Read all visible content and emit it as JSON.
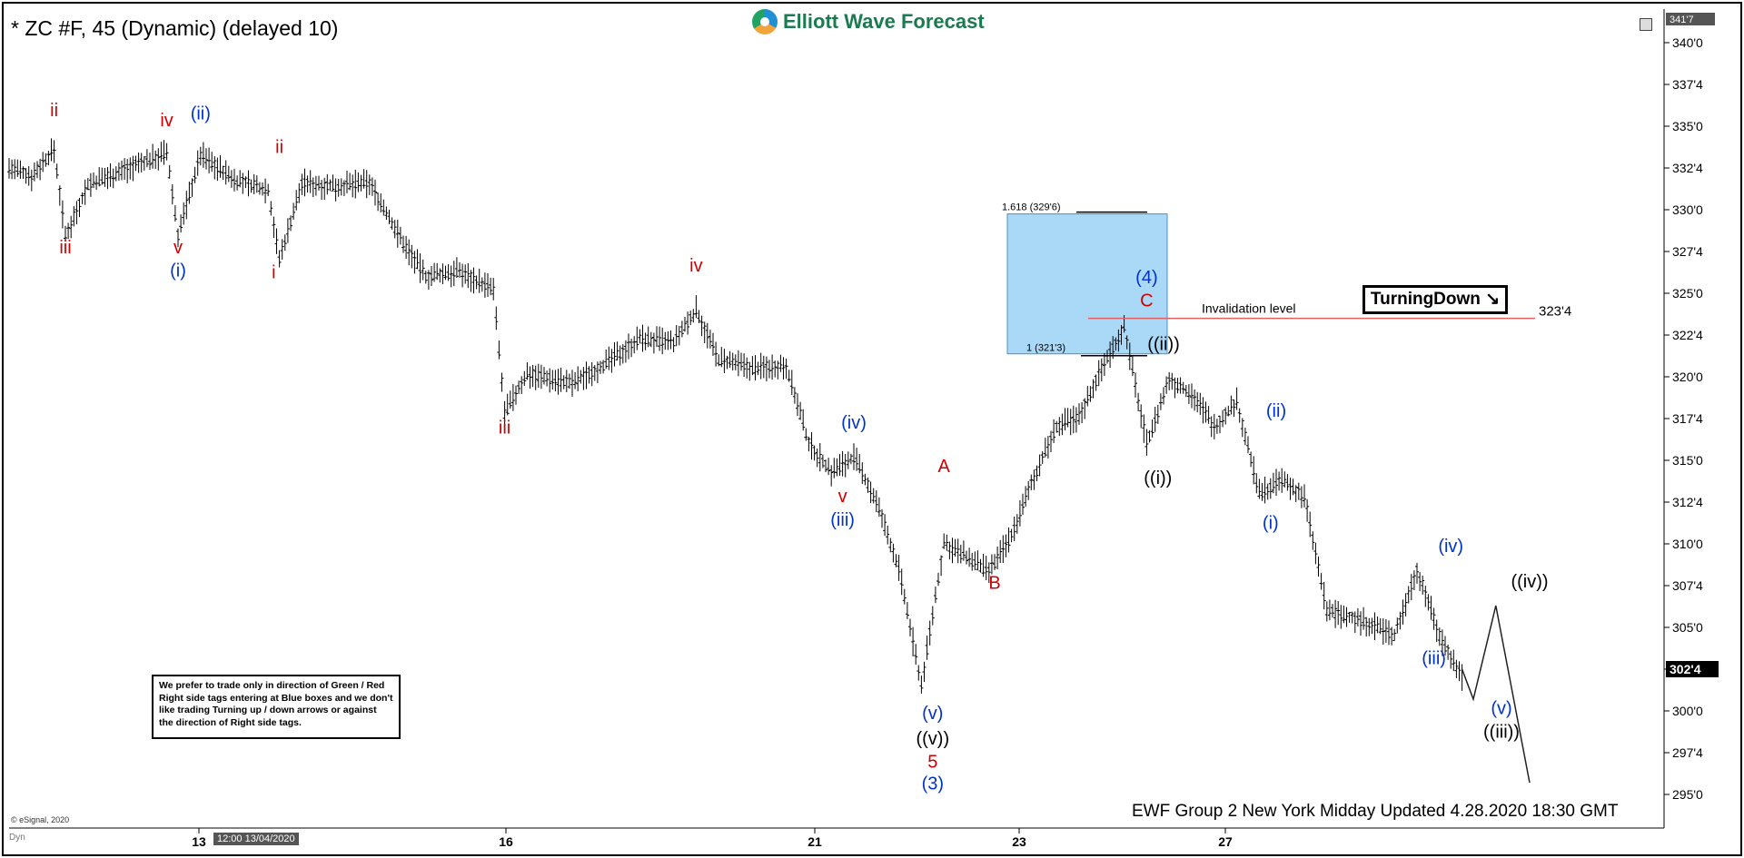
{
  "header": {
    "title": "* ZC #F, 45 (Dynamic) (delayed 10)",
    "brand": "Elliott Wave Forecast",
    "top_right_price": "341'7"
  },
  "overlay": {
    "turning_label": "TurningDown",
    "invalidation_text": "Invalidation level",
    "invalidation_price": "323'4",
    "box_upper_label": "1.618 (329'6)",
    "box_lower_label": "1 (321'3)",
    "box_color": "#aad8f7",
    "current_price": "302'4",
    "note": "We prefer to trade only in direction of Green / Red Right side tags entering at Blue boxes and we don't like trading Turning up / down arrows or against the direction of Right side tags.",
    "footer": "EWF Group 2 New York Midday Updated 4.28.2020 18:30 GMT",
    "copyright": "© eSignal, 2020",
    "corner_label": "Dyn",
    "crosshair_date": "12:00 13/04/2020"
  },
  "chart_data": {
    "type": "ohlc",
    "title": "* ZC #F, 45 (Dynamic) (delayed 10)",
    "y_axis": {
      "ticks": [
        "340'0",
        "337'4",
        "335'0",
        "332'4",
        "330'0",
        "327'4",
        "325'0",
        "322'4",
        "320'0",
        "317'4",
        "315'0",
        "312'4",
        "310'0",
        "307'4",
        "305'0",
        "302'4",
        "300'0",
        "297'4",
        "295'0"
      ],
      "tick_values": [
        340,
        337.5,
        335,
        332.5,
        330,
        327.5,
        325,
        322.5,
        320,
        317.5,
        315,
        312.5,
        310,
        307.5,
        305,
        302.5,
        300,
        297.5,
        295
      ]
    },
    "x_axis": {
      "ticks": [
        "13",
        "16",
        "21",
        "23",
        "27"
      ]
    },
    "price_path": [
      {
        "x": 0,
        "y": 332.5
      },
      {
        "x": 4,
        "y": 332.0
      },
      {
        "x": 8,
        "y": 333.6
      },
      {
        "x": 10,
        "y": 328.4
      },
      {
        "x": 14,
        "y": 331.5
      },
      {
        "x": 22,
        "y": 332.6
      },
      {
        "x": 28,
        "y": 333.4
      },
      {
        "x": 30,
        "y": 328.5
      },
      {
        "x": 34,
        "y": 333.3
      },
      {
        "x": 40,
        "y": 331.8
      },
      {
        "x": 46,
        "y": 331.2
      },
      {
        "x": 48,
        "y": 327.0
      },
      {
        "x": 52,
        "y": 331.6
      },
      {
        "x": 58,
        "y": 331.4
      },
      {
        "x": 64,
        "y": 331.6
      },
      {
        "x": 70,
        "y": 328.0
      },
      {
        "x": 74,
        "y": 326.0
      },
      {
        "x": 80,
        "y": 326.3
      },
      {
        "x": 86,
        "y": 325.2
      },
      {
        "x": 88,
        "y": 317.8
      },
      {
        "x": 92,
        "y": 320.2
      },
      {
        "x": 100,
        "y": 319.6
      },
      {
        "x": 106,
        "y": 320.8
      },
      {
        "x": 112,
        "y": 322.3
      },
      {
        "x": 118,
        "y": 322.0
      },
      {
        "x": 122,
        "y": 324.0
      },
      {
        "x": 126,
        "y": 321.0
      },
      {
        "x": 132,
        "y": 320.5
      },
      {
        "x": 138,
        "y": 320.7
      },
      {
        "x": 142,
        "y": 316.0
      },
      {
        "x": 146,
        "y": 314.3
      },
      {
        "x": 150,
        "y": 315.2
      },
      {
        "x": 154,
        "y": 312.5
      },
      {
        "x": 158,
        "y": 308.5
      },
      {
        "x": 162,
        "y": 301.5
      },
      {
        "x": 166,
        "y": 310.0
      },
      {
        "x": 170,
        "y": 309.2
      },
      {
        "x": 174,
        "y": 308.3
      },
      {
        "x": 178,
        "y": 310.5
      },
      {
        "x": 182,
        "y": 314.0
      },
      {
        "x": 186,
        "y": 317.0
      },
      {
        "x": 190,
        "y": 317.6
      },
      {
        "x": 194,
        "y": 320.5
      },
      {
        "x": 198,
        "y": 323.0
      },
      {
        "x": 202,
        "y": 316.0
      },
      {
        "x": 206,
        "y": 319.8
      },
      {
        "x": 210,
        "y": 319.0
      },
      {
        "x": 214,
        "y": 317.0
      },
      {
        "x": 218,
        "y": 318.5
      },
      {
        "x": 222,
        "y": 313.0
      },
      {
        "x": 226,
        "y": 313.8
      },
      {
        "x": 230,
        "y": 312.8
      },
      {
        "x": 234,
        "y": 306.0
      },
      {
        "x": 238,
        "y": 305.6
      },
      {
        "x": 242,
        "y": 305.2
      },
      {
        "x": 246,
        "y": 304.5
      },
      {
        "x": 250,
        "y": 308.5
      },
      {
        "x": 254,
        "y": 304.5
      },
      {
        "x": 258,
        "y": 302.0
      }
    ],
    "projection": [
      {
        "x": 258,
        "y": 302.5
      },
      {
        "x": 260,
        "y": 300.7
      },
      {
        "x": 264,
        "y": 306.3
      },
      {
        "x": 270,
        "y": 295.7
      }
    ],
    "invalidation_level": 323.5,
    "blue_box": {
      "from": 329.75,
      "to": 321.375
    },
    "wave_labels": [
      {
        "text": "ii",
        "color": "#d00000",
        "x": 8,
        "y": 335.6
      },
      {
        "text": "iii",
        "color": "#d00000",
        "x": 10,
        "y": 327.4
      },
      {
        "text": "iv",
        "color": "#d00000",
        "x": 28,
        "y": 335.0
      },
      {
        "text": "v",
        "color": "#d00000",
        "x": 30,
        "y": 327.4
      },
      {
        "text": "(i)",
        "color": "#0033cc",
        "x": 30,
        "y": 326.0
      },
      {
        "text": "(ii)",
        "color": "#0033cc",
        "x": 34,
        "y": 335.4
      },
      {
        "text": "ii",
        "color": "#d00000",
        "x": 48,
        "y": 333.4
      },
      {
        "text": "i",
        "color": "#d00000",
        "x": 47,
        "y": 325.9
      },
      {
        "text": "iv",
        "color": "#d00000",
        "x": 122,
        "y": 326.3
      },
      {
        "text": "iii",
        "color": "#d00000",
        "x": 88,
        "y": 316.6
      },
      {
        "text": "(iv)",
        "color": "#0033cc",
        "x": 150,
        "y": 316.9
      },
      {
        "text": "v",
        "color": "#d00000",
        "x": 148,
        "y": 312.5
      },
      {
        "text": "(iii)",
        "color": "#0033cc",
        "x": 148,
        "y": 311.1
      },
      {
        "text": "A",
        "color": "#d00000",
        "x": 166,
        "y": 314.3
      },
      {
        "text": "B",
        "color": "#d00000",
        "x": 175,
        "y": 307.3
      },
      {
        "text": "(v)",
        "color": "#0033cc",
        "x": 164,
        "y": 299.5
      },
      {
        "text": "((v))",
        "color": "#000000",
        "x": 164,
        "y": 298.0
      },
      {
        "text": "5",
        "color": "#d00000",
        "x": 164,
        "y": 296.6
      },
      {
        "text": "(3)",
        "color": "#0033cc",
        "x": 164,
        "y": 295.3
      },
      {
        "text": "(4)",
        "color": "#0033cc",
        "x": 202,
        "y": 325.6
      },
      {
        "text": "C",
        "color": "#d00000",
        "x": 202,
        "y": 324.2
      },
      {
        "text": "((ii))",
        "color": "#000000",
        "x": 205,
        "y": 321.6
      },
      {
        "text": "((i))",
        "color": "#000000",
        "x": 204,
        "y": 313.6
      },
      {
        "text": "(ii)",
        "color": "#0033cc",
        "x": 225,
        "y": 317.6
      },
      {
        "text": "(i)",
        "color": "#0033cc",
        "x": 224,
        "y": 310.9
      },
      {
        "text": "(iv)",
        "color": "#0033cc",
        "x": 256,
        "y": 309.5
      },
      {
        "text": "(iii)",
        "color": "#0033cc",
        "x": 253,
        "y": 302.8
      },
      {
        "text": "(v)",
        "color": "#0033cc",
        "x": 265,
        "y": 299.8
      },
      {
        "text": "((iii))",
        "color": "#000000",
        "x": 265,
        "y": 298.4
      },
      {
        "text": "((iv))",
        "color": "#000000",
        "x": 270,
        "y": 307.4
      }
    ]
  }
}
